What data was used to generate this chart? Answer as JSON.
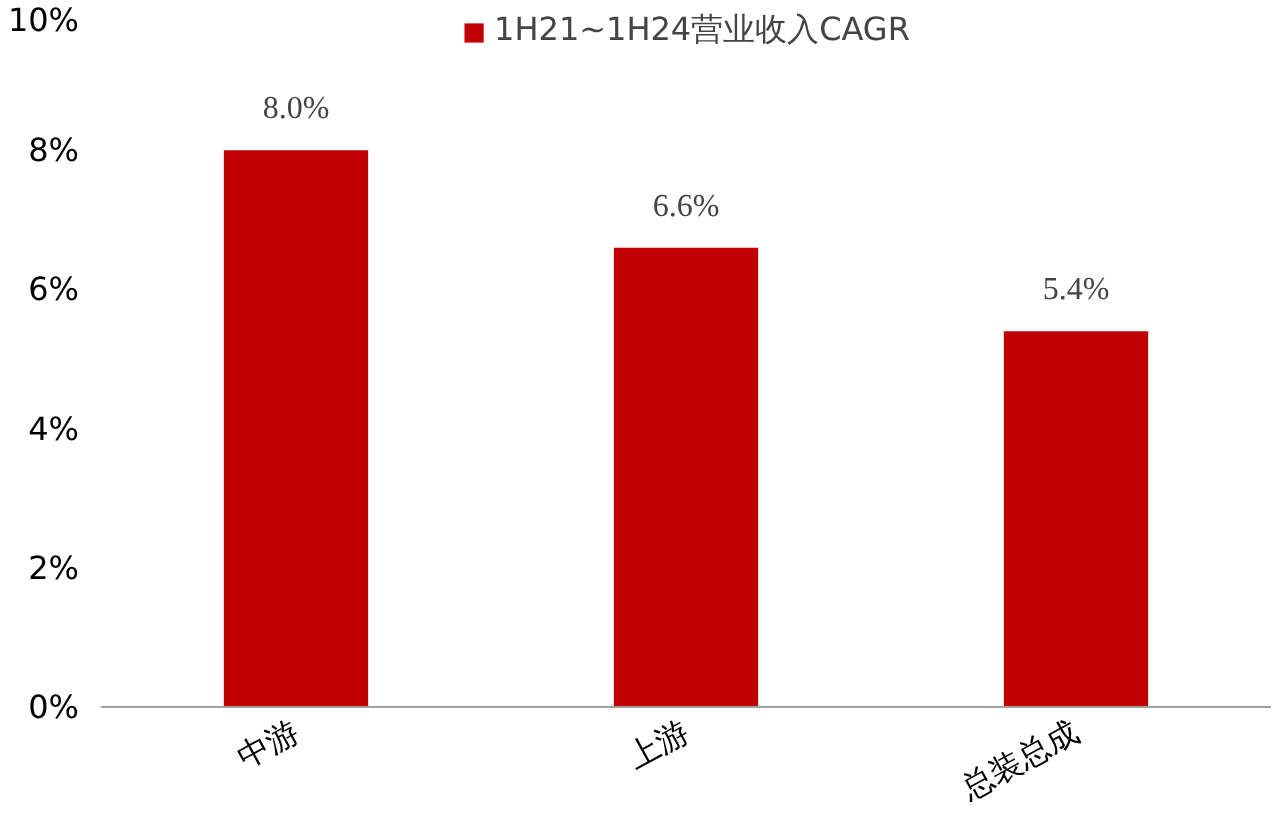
{
  "chart_data": {
    "type": "bar",
    "categories": [
      "中游",
      "上游",
      "总装总成"
    ],
    "series": [
      {
        "name": "1H21~1H24营业收入CAGR",
        "color": "#c00000",
        "values": [
          8.0,
          6.6,
          5.4
        ],
        "value_labels": [
          "8.0%",
          "6.6%",
          "5.4%"
        ]
      }
    ],
    "ylim": [
      0,
      10
    ],
    "yticks": [
      {
        "value": 0,
        "label": "0%"
      },
      {
        "value": 2,
        "label": "2%"
      },
      {
        "value": 4,
        "label": "4%"
      },
      {
        "value": 6,
        "label": "6%"
      },
      {
        "value": 8,
        "label": "8%"
      },
      {
        "value": 10,
        "label": "10%"
      }
    ],
    "grid": false,
    "legend": "top"
  }
}
